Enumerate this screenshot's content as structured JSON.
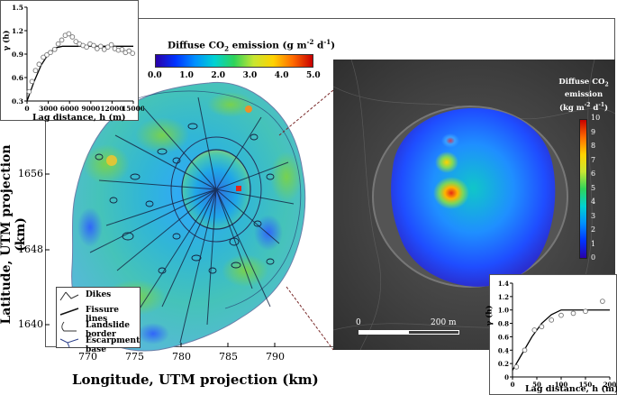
{
  "colors": {
    "ramp_left": [
      "#2a00a8",
      "#0033ff",
      "#0090ff",
      "#00d2d2",
      "#2fd35a",
      "#c8e632",
      "#ffd200",
      "#ff6a00",
      "#c80000"
    ],
    "ramp_right": [
      "#2a00a8",
      "#0033ff",
      "#0090ff",
      "#00d2d2",
      "#2fd35a",
      "#c8e632",
      "#ffd200",
      "#ff6a00",
      "#c80000"
    ],
    "crater": "#3e3e3e",
    "map_edge": "#5b6fb0"
  },
  "left_colorbar": {
    "title_parts": {
      "a": "Diffuse CO",
      "b": "2",
      "c": " emission (g m",
      "d": "-2",
      "e": " d",
      "f": "-1",
      "g": ")"
    },
    "ticks": [
      "0.0",
      "1.0",
      "2.0",
      "3.0",
      "4.0",
      "5.0"
    ]
  },
  "right_colorbar": {
    "title_line1": "Diffuse CO",
    "title_line1_sub": "2",
    "title_line2": "emission",
    "title_line3_parts": {
      "a": "(kg m",
      "b": "-2",
      "c": " d",
      "d": "-1",
      "e": ")"
    },
    "ticks": [
      "10",
      "9",
      "8",
      "7",
      "6",
      "5",
      "4",
      "3",
      "2",
      "1",
      "0"
    ]
  },
  "map": {
    "ylabel": "Latitude, UTM projection (km)",
    "xlabel": "Longitude, UTM projection (km)",
    "yticks": [
      "1656",
      "1648",
      "1640"
    ],
    "xticks": [
      "770",
      "775",
      "780",
      "785",
      "790"
    ],
    "crater_scale": {
      "zero": "0",
      "end": "200 m"
    },
    "legend": [
      "Dikes",
      "Fissure lines",
      "Landslide border",
      "Escarpment base"
    ]
  },
  "chart_data": [
    {
      "type": "scatter",
      "title": "",
      "xlabel": "Lag distance, h (m)",
      "ylabel": "γ (h)",
      "xlim": [
        0,
        15000
      ],
      "ylim": [
        0.3,
        1.5
      ],
      "xticks": [
        "0",
        "3000",
        "6000",
        "9000",
        "12000",
        "15000"
      ],
      "yticks": [
        "0.3",
        "0.6",
        "0.9",
        "1.2",
        "1.5"
      ],
      "points_x": [
        300,
        700,
        1200,
        1700,
        2300,
        2800,
        3300,
        3900,
        4400,
        4900,
        5400,
        5900,
        6400,
        6900,
        7400,
        7900,
        8400,
        8900,
        9400,
        9900,
        10400,
        10900,
        11400,
        11900,
        12400,
        12900,
        13400,
        13900,
        14400,
        14900
      ],
      "points_y": [
        0.42,
        0.55,
        0.69,
        0.77,
        0.86,
        0.89,
        0.92,
        0.96,
        1.03,
        1.08,
        1.14,
        1.16,
        1.12,
        1.06,
        1.03,
        1.01,
        0.99,
        1.03,
        1.01,
        0.97,
        1.0,
        0.96,
        0.99,
        1.02,
        0.97,
        0.95,
        0.96,
        0.92,
        0.94,
        0.91
      ],
      "model_x": [
        0,
        1000,
        2000,
        3000,
        4000,
        5000,
        15000
      ],
      "model_y": [
        0.3,
        0.55,
        0.76,
        0.9,
        0.98,
        1.0,
        1.0
      ]
    },
    {
      "type": "scatter",
      "title": "",
      "xlabel": "Lag distance, h (m)",
      "ylabel": "γ (h)",
      "xlim": [
        0,
        200
      ],
      "ylim": [
        0,
        1.4
      ],
      "xticks": [
        "0",
        "50",
        "100",
        "150",
        "200"
      ],
      "yticks": [
        "0",
        "0.2",
        "0.4",
        "0.6",
        "0.8",
        "1.0",
        "1.2",
        "1.4"
      ],
      "points_x": [
        8,
        25,
        45,
        60,
        80,
        100,
        125,
        150,
        185
      ],
      "points_y": [
        0.15,
        0.4,
        0.7,
        0.75,
        0.85,
        0.92,
        0.95,
        0.98,
        1.13
      ],
      "model_x": [
        0,
        20,
        40,
        60,
        80,
        100,
        200
      ],
      "model_y": [
        0.1,
        0.35,
        0.6,
        0.8,
        0.93,
        1.0,
        1.0
      ]
    }
  ]
}
